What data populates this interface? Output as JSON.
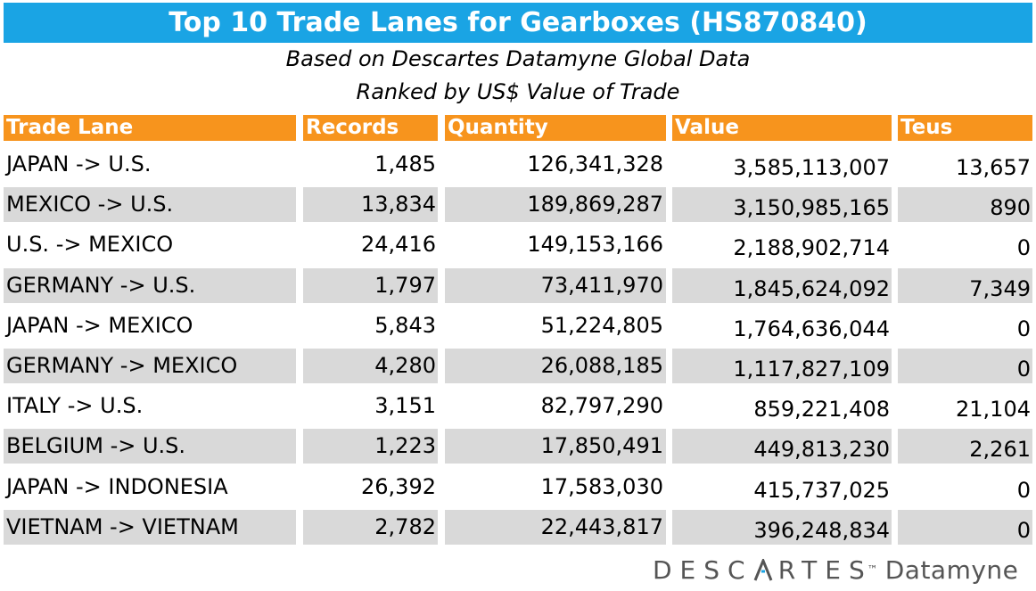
{
  "chart_data": {
    "type": "table",
    "title": "Top 10 Trade Lanes for Gearboxes (HS870840)",
    "subtitle_lines": [
      "Based on Descartes Datamyne Global Data",
      "Ranked by US$ Value of Trade"
    ],
    "columns": [
      "Trade Lane",
      "Records",
      "Quantity",
      "Value",
      "Teus"
    ],
    "rows": [
      {
        "lane": "JAPAN -> U.S.",
        "records": "1,485",
        "quantity": "126,341,328",
        "value": "3,585,113,007",
        "teus": "13,657"
      },
      {
        "lane": "MEXICO -> U.S.",
        "records": "13,834",
        "quantity": "189,869,287",
        "value": "3,150,985,165",
        "teus": "890"
      },
      {
        "lane": "U.S. -> MEXICO",
        "records": "24,416",
        "quantity": "149,153,166",
        "value": "2,188,902,714",
        "teus": "0"
      },
      {
        "lane": "GERMANY -> U.S.",
        "records": "1,797",
        "quantity": "73,411,970",
        "value": "1,845,624,092",
        "teus": "7,349"
      },
      {
        "lane": "JAPAN -> MEXICO",
        "records": "5,843",
        "quantity": "51,224,805",
        "value": "1,764,636,044",
        "teus": "0"
      },
      {
        "lane": "GERMANY -> MEXICO",
        "records": "4,280",
        "quantity": "26,088,185",
        "value": "1,117,827,109",
        "teus": "0"
      },
      {
        "lane": "ITALY -> U.S.",
        "records": "3,151",
        "quantity": "82,797,290",
        "value": "859,221,408",
        "teus": "21,104"
      },
      {
        "lane": "BELGIUM -> U.S.",
        "records": "1,223",
        "quantity": "17,850,491",
        "value": "449,813,230",
        "teus": "2,261"
      },
      {
        "lane": "JAPAN -> INDONESIA",
        "records": "26,392",
        "quantity": "17,583,030",
        "value": "415,737,025",
        "teus": "0"
      },
      {
        "lane": "VIETNAM -> VIETNAM",
        "records": "2,782",
        "quantity": "22,443,817",
        "value": "396,248,834",
        "teus": "0"
      }
    ]
  },
  "logo": {
    "word_left": "DESC",
    "word_a": "A",
    "word_right": "RTES",
    "tm": "™",
    "suffix": "Datamyne"
  },
  "colors": {
    "title_bar": "#1aa4e4",
    "header": "#f7941d",
    "shaded_row": "#d9d9d9",
    "logo_gray": "#555555"
  }
}
